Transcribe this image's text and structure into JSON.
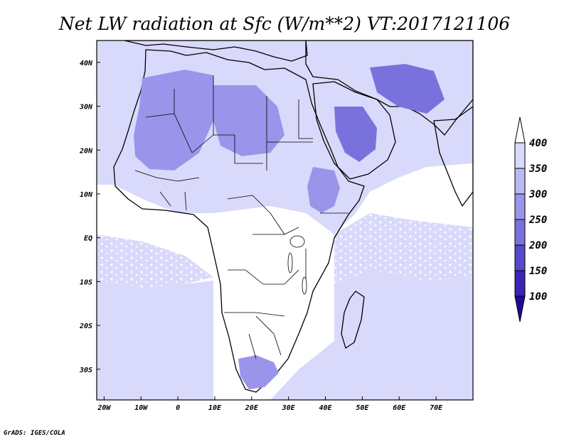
{
  "title": "Net LW radiation at Sfc (W/m**2) VT:2017121106",
  "credit": "GrADS: IGES/COLA",
  "x_ticks": [
    "20W",
    "10W",
    "0",
    "10E",
    "20E",
    "30E",
    "40E",
    "50E",
    "60E",
    "70E"
  ],
  "y_ticks": [
    "40N",
    "30N",
    "20N",
    "10N",
    "EQ",
    "10S",
    "20S",
    "30S"
  ],
  "colorbar": {
    "labels": [
      "400",
      "350",
      "300",
      "250",
      "200",
      "150",
      "100"
    ],
    "colors": [
      "#ffffff",
      "#d9d9fb",
      "#b9b9f3",
      "#9a95ea",
      "#7a72dc",
      "#5748cc",
      "#3c23b6",
      "#250795"
    ]
  },
  "map_colors": {
    "ocean_clear": "#ffffff",
    "ocean_cloud": "#d9d9fb",
    "land_low": "#b9b9f3",
    "land_mid": "#9a95ea",
    "land_high": "#7a72dc"
  },
  "chart_data": {
    "type": "heatmap",
    "title": "Net LW radiation at Sfc (W/m**2) VT:2017121106",
    "x_range_deg_lon": [
      -22,
      80
    ],
    "y_range_deg_lat": [
      -37,
      45
    ],
    "contour_levels": [
      100,
      150,
      200,
      250,
      300,
      350,
      400
    ],
    "xticks": [
      "20W",
      "10W",
      "0",
      "10E",
      "20E",
      "30E",
      "40E",
      "50E",
      "60E",
      "70E"
    ],
    "yticks": [
      "40N",
      "30N",
      "20N",
      "10N",
      "EQ",
      "10S",
      "20S",
      "30S"
    ],
    "legend_position": "right"
  }
}
